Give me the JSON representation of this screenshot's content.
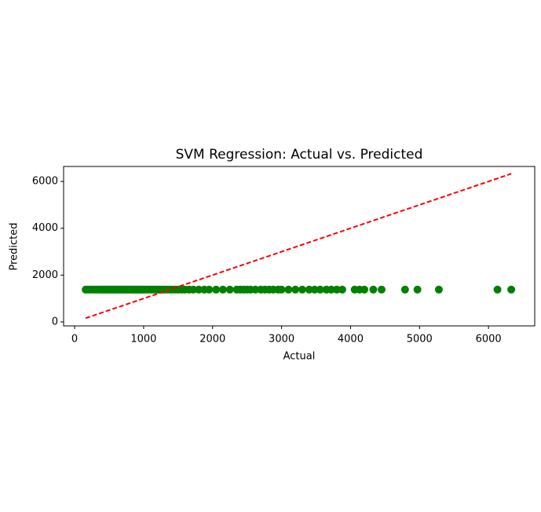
{
  "chart_data": {
    "type": "scatter",
    "title": "SVM Regression: Actual vs. Predicted",
    "x_label": "Actual",
    "y_label": "Predicted",
    "color": "green",
    "x": [
      160,
      180,
      200,
      230,
      260,
      300,
      330,
      350,
      380,
      400,
      420,
      440,
      460,
      480,
      500,
      520,
      540,
      560,
      580,
      600,
      620,
      640,
      660,
      680,
      700,
      720,
      740,
      760,
      780,
      800,
      820,
      840,
      860,
      880,
      900,
      920,
      940,
      960,
      980,
      1000,
      1030,
      1060,
      1090,
      1120,
      1150,
      1180,
      1210,
      1240,
      1270,
      1300,
      1340,
      1380,
      1420,
      1460,
      1500,
      1550,
      1600,
      1660,
      1720,
      1800,
      1880,
      1950,
      2050,
      2150,
      2250,
      2350,
      2400,
      2450,
      2500,
      2550,
      2620,
      2700,
      2760,
      2820,
      2880,
      2950,
      3000,
      3100,
      3200,
      3300,
      3400,
      3480,
      3560,
      3650,
      3720,
      3800,
      3880,
      4060,
      4130,
      4200,
      4330,
      4450,
      4790,
      4970,
      5280,
      6130,
      6330
    ],
    "y": [
      1380,
      1380,
      1380,
      1380,
      1380,
      1380,
      1380,
      1380,
      1380,
      1380,
      1380,
      1380,
      1380,
      1380,
      1380,
      1380,
      1380,
      1380,
      1380,
      1380,
      1380,
      1380,
      1380,
      1380,
      1380,
      1380,
      1380,
      1380,
      1380,
      1380,
      1380,
      1380,
      1380,
      1380,
      1380,
      1380,
      1380,
      1380,
      1380,
      1380,
      1380,
      1380,
      1380,
      1380,
      1380,
      1380,
      1380,
      1380,
      1380,
      1380,
      1380,
      1380,
      1380,
      1380,
      1380,
      1380,
      1380,
      1380,
      1380,
      1380,
      1380,
      1380,
      1380,
      1380,
      1380,
      1380,
      1380,
      1380,
      1380,
      1380,
      1380,
      1380,
      1380,
      1380,
      1380,
      1380,
      1380,
      1380,
      1380,
      1380,
      1380,
      1380,
      1380,
      1380,
      1380,
      1380,
      1380,
      1380,
      1380,
      1380,
      1380,
      1380,
      1380,
      1380,
      1380,
      1380,
      1380
    ],
    "reference_line": {
      "x": [
        160,
        6330
      ],
      "y": [
        160,
        6330
      ],
      "color": "red",
      "style": "dashed"
    },
    "xlim": [
      -160,
      6670
    ],
    "ylim": [
      -170,
      6640
    ],
    "xticks": [
      0,
      1000,
      2000,
      3000,
      4000,
      5000,
      6000
    ],
    "yticks": [
      0,
      2000,
      4000,
      6000
    ]
  }
}
